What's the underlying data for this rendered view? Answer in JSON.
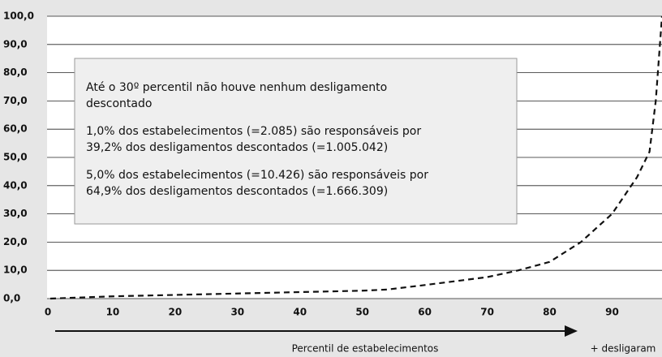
{
  "chart_data": {
    "type": "line",
    "x": [
      0,
      10,
      20,
      30,
      40,
      50,
      54,
      60,
      70,
      75,
      80,
      85,
      90,
      94,
      96,
      97,
      98
    ],
    "series": [
      {
        "color": "#111111",
        "values": [
          0,
          0.8,
          1.3,
          1.8,
          2.3,
          2.8,
          3.2,
          4.8,
          7.6,
          10,
          13,
          20,
          30,
          43,
          52,
          70,
          100
        ]
      }
    ],
    "xlim": [
      0,
      98
    ],
    "xticks": [
      0,
      10,
      20,
      30,
      40,
      50,
      60,
      70,
      80,
      90
    ],
    "ylim": [
      0,
      100
    ],
    "yticks": [
      {
        "value": 0,
        "label": "0,0"
      },
      {
        "value": 10,
        "label": "10,0"
      },
      {
        "value": 20,
        "label": "20,0"
      },
      {
        "value": 30,
        "label": "30,0"
      },
      {
        "value": 40,
        "label": "40,0"
      },
      {
        "value": 50,
        "label": "50,0"
      },
      {
        "value": 60,
        "label": "60,0"
      },
      {
        "value": 70,
        "label": "70,0"
      },
      {
        "value": 80,
        "label": "80,0"
      },
      {
        "value": 90,
        "label": "90,0"
      },
      {
        "value": 100,
        "label": "100,0"
      }
    ],
    "grid": true,
    "xlabel": "Percentil de estabelecimentos",
    "xlabel_right": "+ desligaram",
    "annotation": [
      [
        "Até o 30º percentil não houve nenhum desligamento",
        "descontado"
      ],
      [
        "1,0% dos estabelecimentos (=2.085) são responsáveis por",
        "39,2% dos desligamentos descontados (=1.005.042)"
      ],
      [
        "5,0% dos estabelecimentos (=10.426) são responsáveis por",
        "64,9% dos desligamentos descontados (=1.666.309)"
      ]
    ]
  }
}
